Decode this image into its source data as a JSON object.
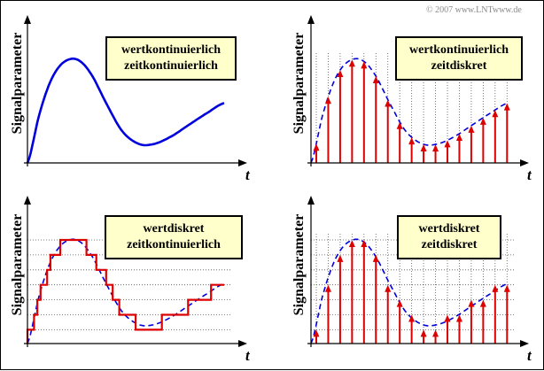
{
  "copyright": "© 2007 www.LNTwww.de",
  "panels": [
    {
      "ylabel": "Signalparameter",
      "xlabel": "t",
      "line1": "wertkontinuierlich",
      "line2": "zeitkontinuierlich"
    },
    {
      "ylabel": "Signalparameter",
      "xlabel": "t",
      "line1": "wertkontinuierlich",
      "line2": "zeitdiskret"
    },
    {
      "ylabel": "Signalparameter",
      "xlabel": "t",
      "line1": "wertdiskret",
      "line2": "zeitkontinuierlich"
    },
    {
      "ylabel": "Signalparameter",
      "xlabel": "t",
      "line1": "wertdiskret",
      "line2": "zeitdiskret"
    }
  ],
  "colors": {
    "signal": "#0000dd",
    "sample": "#dd0000",
    "grid": "#555555",
    "box_fill": "#ffffcc"
  }
}
